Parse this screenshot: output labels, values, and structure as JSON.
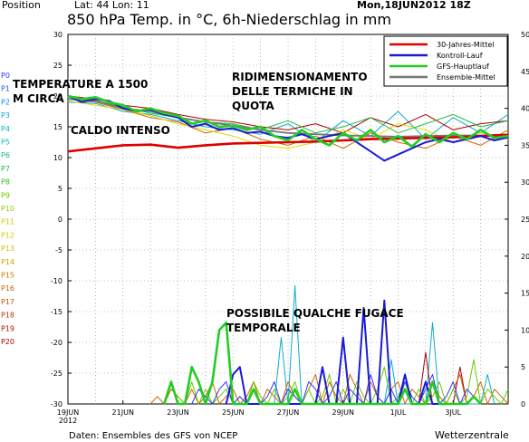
{
  "header": {
    "position": "Position",
    "coords": "Lat: 44 Lon: 11",
    "date": "Mon,18JUN2012 18Z",
    "title": "850 hPa Temp. in °C, 6h-Niederschlag in mm"
  },
  "footer": {
    "source": "Daten: Ensembles des GFS von NCEP",
    "brand": "Wetterzentrale"
  },
  "annotations": {
    "a1_line1": "TEMPERATURE A 1500",
    "a1_line2": "M CIRCA",
    "a2_line1": "RIDIMENSIONAMENTO",
    "a2_line2": "DELLE TERMICHE IN",
    "a2_line3": "QUOTA",
    "a3": "CALDO INTENSO",
    "a4_line1": "POSSIBILE QUALCHE FUGACE",
    "a4_line2": "TEMPORALE"
  },
  "legend": {
    "items": [
      {
        "label": "30-Jahres-Mittel",
        "color": "#dd0000"
      },
      {
        "label": "Kontroll-Lauf",
        "color": "#1a1ad8"
      },
      {
        "label": "GFS-Hauptlauf",
        "color": "#22cc22"
      },
      {
        "label": "Ensemble-Mittel",
        "color": "#777777"
      }
    ]
  },
  "members": [
    "P0",
    "P1",
    "P2",
    "P3",
    "P4",
    "P5",
    "P6",
    "P7",
    "P8",
    "P9",
    "P10",
    "P11",
    "P12",
    "P13",
    "P14",
    "P15",
    "P16",
    "P17",
    "P18",
    "P19",
    "P20"
  ],
  "member_colors": [
    "#3333ff",
    "#2255ee",
    "#1188ee",
    "#1199cc",
    "#11aacc",
    "#11bbbb",
    "#11bb88",
    "#22bb44",
    "#33bb22",
    "#66cc00",
    "#99cc00",
    "#cccc00",
    "#ddcc00",
    "#ddbb00",
    "#dd9900",
    "#cc7700",
    "#cc6600",
    "#bb5500",
    "#bb3300",
    "#aa1100",
    "#aa0000"
  ],
  "chart_data": {
    "type": "line",
    "xlabels": [
      "19JUN",
      "21JUN",
      "23JUN",
      "25JUN",
      "27JUN",
      "29JUN",
      "1JUL",
      "3JUL"
    ],
    "xlabel_year": "2012",
    "x_range_days": [
      0,
      16
    ],
    "y_left": {
      "range": [
        -30,
        30
      ],
      "ticks": [
        30,
        25,
        20,
        15,
        10,
        5,
        0,
        -5,
        -10,
        -15,
        -20,
        -25,
        -30
      ]
    },
    "y_right": {
      "range": [
        0,
        50
      ],
      "ticks": [
        50,
        45,
        40,
        35,
        30,
        25,
        20,
        15,
        10,
        5,
        0
      ]
    },
    "grid": true,
    "legend_position": "top-right",
    "series": [
      {
        "name": "30-Jahres-Mittel",
        "axis": "left",
        "color": "#dd0000",
        "width": 2.6,
        "x": [
          0,
          1,
          2,
          3,
          4,
          5,
          6,
          7,
          8,
          9,
          10,
          11,
          12,
          13,
          14,
          15,
          16
        ],
        "y": [
          11,
          11.5,
          12,
          12.1,
          11.6,
          12,
          12.3,
          12.4,
          12.5,
          12.6,
          12.8,
          13,
          13.1,
          13.2,
          13.3,
          13.5,
          13.7
        ]
      },
      {
        "name": "Kontroll-Lauf",
        "axis": "left",
        "color": "#1a1ad8",
        "width": 2,
        "x": [
          0,
          0.5,
          1,
          1.5,
          2,
          2.5,
          3,
          3.5,
          4,
          4.5,
          5,
          5.5,
          6,
          6.5,
          7,
          7.5,
          8,
          8.5,
          9,
          9.5,
          10,
          10.5,
          11,
          11.5,
          12,
          12.5,
          13,
          13.5,
          14,
          14.5,
          15,
          15.5,
          16
        ],
        "y": [
          20,
          19,
          19.5,
          19.2,
          18,
          17.5,
          17.8,
          17,
          16.5,
          15,
          15.5,
          14.5,
          14.8,
          14,
          14.2,
          13.5,
          13.2,
          13.8,
          13,
          13.5,
          14,
          12.5,
          11,
          9.5,
          10.5,
          11.5,
          12.5,
          13,
          12.5,
          13,
          13.5,
          12.8,
          13.3
        ]
      },
      {
        "name": "GFS-Hauptlauf",
        "axis": "left",
        "color": "#22cc22",
        "width": 2.6,
        "x": [
          0,
          0.5,
          1,
          1.5,
          2,
          2.5,
          3,
          3.5,
          4,
          4.5,
          5,
          5.5,
          6,
          6.5,
          7,
          7.5,
          8,
          8.5,
          9,
          9.5,
          10,
          10.5,
          11,
          11.5,
          12,
          12.5,
          13,
          13.5,
          14,
          14.5,
          15,
          15.5,
          16
        ],
        "y": [
          20,
          19.5,
          19.8,
          19,
          18.5,
          17.5,
          18,
          17.2,
          16.8,
          15.5,
          16,
          15,
          15.2,
          14.5,
          15,
          13.5,
          12.8,
          14.5,
          13,
          12,
          14,
          12.8,
          14.5,
          12.5,
          13.5,
          11.8,
          13.8,
          12.5,
          14,
          13,
          14.5,
          13.2,
          13.5
        ]
      },
      {
        "name": "Ensemble-Mittel",
        "axis": "left",
        "color": "#777777",
        "width": 1.8,
        "x": [
          0,
          1,
          2,
          3,
          4,
          5,
          6,
          7,
          8,
          9,
          10,
          11,
          12,
          13,
          14,
          15,
          16
        ],
        "y": [
          19.5,
          19.2,
          18,
          17.5,
          16.5,
          15.8,
          15.2,
          14.5,
          14,
          13.8,
          13.6,
          13.5,
          13.4,
          13.5,
          13.6,
          13.6,
          13.7
        ]
      },
      {
        "name": "Kontroll-Lauf",
        "axis": "right",
        "color": "#1a1ad8",
        "width": 2,
        "x": [
          5.75,
          6,
          6.25,
          6.5,
          9,
          9.25,
          9.5,
          9.75,
          10,
          10.25,
          10.5,
          10.75,
          11,
          11.25,
          11.5,
          11.75,
          12,
          12.25,
          12.5,
          12.75,
          13,
          13.25,
          13.5
        ],
        "y": [
          0,
          4,
          5,
          0,
          0,
          5,
          0,
          0,
          9,
          0,
          0,
          13,
          0,
          0,
          14,
          0,
          0,
          4,
          0,
          0,
          3,
          0,
          0
        ]
      },
      {
        "name": "GFS-Hauptlauf",
        "axis": "right",
        "color": "#22cc22",
        "width": 2.6,
        "x": [
          3.5,
          3.75,
          4,
          4.25,
          4.5,
          4.75,
          5,
          5.25,
          5.5,
          5.75,
          6,
          6.25,
          6.5,
          6.75,
          7,
          7.25,
          7.5,
          8,
          8.25,
          8.5,
          8.75,
          9,
          12,
          12.25,
          12.5,
          13,
          13.25,
          13.5,
          14.5,
          14.75,
          15
        ],
        "y": [
          0,
          3,
          0,
          0,
          5,
          3,
          0,
          3,
          10,
          11,
          0,
          0,
          0,
          2,
          0,
          0,
          0,
          0,
          2,
          0,
          0,
          0,
          0,
          2,
          0,
          0,
          3,
          0,
          0,
          1,
          0
        ]
      },
      {
        "name": "member-1",
        "axis": "left",
        "color": "#11aacc",
        "width": 1,
        "x": [
          0,
          1,
          2,
          3,
          4,
          5,
          6,
          7,
          8,
          9,
          10,
          11,
          12,
          13,
          14,
          15,
          16
        ],
        "y": [
          19,
          18.8,
          17.5,
          17,
          16,
          15,
          14.5,
          13.8,
          15.5,
          12.5,
          16,
          13.5,
          17.5,
          13,
          16.5,
          14,
          17
        ]
      },
      {
        "name": "member-2",
        "axis": "left",
        "color": "#cc6600",
        "width": 1,
        "x": [
          0,
          1,
          2,
          3,
          4,
          5,
          6,
          7,
          8,
          9,
          10,
          11,
          12,
          13,
          14,
          15,
          16
        ],
        "y": [
          19.5,
          19,
          17.8,
          16.5,
          15.8,
          14,
          14.8,
          13,
          12,
          13.5,
          11.5,
          14,
          12.5,
          11.5,
          13.5,
          12,
          14.5
        ]
      },
      {
        "name": "member-3",
        "axis": "left",
        "color": "#aa0000",
        "width": 1,
        "x": [
          0,
          1,
          2,
          3,
          4,
          5,
          6,
          7,
          8,
          9,
          10,
          11,
          12,
          13,
          14,
          15,
          16
        ],
        "y": [
          20,
          19.5,
          18.5,
          18,
          17,
          16.2,
          15.8,
          15,
          14.5,
          15.5,
          14,
          16.5,
          15,
          17,
          14.5,
          15.5,
          16
        ]
      },
      {
        "name": "member-4",
        "axis": "left",
        "color": "#dddd00",
        "width": 1,
        "x": [
          0,
          1,
          2,
          3,
          4,
          5,
          6,
          7,
          8,
          9,
          10,
          11,
          12,
          13,
          14,
          15,
          16
        ],
        "y": [
          19.2,
          18.5,
          17.8,
          16.8,
          15.5,
          14.5,
          13.5,
          12,
          11.5,
          12.5,
          14.5,
          13,
          15.5,
          14.5,
          12.5,
          14,
          13
        ]
      },
      {
        "name": "member-5",
        "axis": "left",
        "color": "#22bb44",
        "width": 1,
        "x": [
          0,
          1,
          2,
          3,
          4,
          5,
          6,
          7,
          8,
          9,
          10,
          11,
          12,
          13,
          14,
          15,
          16
        ],
        "y": [
          19.8,
          19.3,
          18.2,
          17.2,
          16.5,
          15.8,
          15.5,
          14.5,
          16,
          14,
          15,
          16.5,
          14,
          15.5,
          17,
          15,
          16
        ]
      },
      {
        "name": "member-6",
        "axis": "right",
        "color": "#11aacc",
        "width": 1,
        "x": [
          7.5,
          7.75,
          8,
          8.25,
          8.5,
          11.5,
          11.75,
          12,
          12.25,
          12.5,
          13,
          13.25,
          13.5,
          15,
          15.25,
          15.5
        ],
        "y": [
          0,
          9,
          0,
          0,
          0,
          0,
          6,
          0,
          0,
          0,
          0,
          11,
          0,
          0,
          4,
          0
        ]
      },
      {
        "name": "member-7",
        "axis": "right",
        "color": "#11aacc",
        "width": 1,
        "x": [
          8,
          8.25,
          8.5,
          8.75,
          9
        ],
        "y": [
          0,
          16,
          0,
          0,
          0
        ]
      },
      {
        "name": "member-8",
        "axis": "right",
        "color": "#aa0000",
        "width": 1,
        "x": [
          12.75,
          13,
          13.25,
          13.5,
          14,
          14.25,
          14.5
        ],
        "y": [
          0,
          7,
          0,
          0,
          0,
          5,
          0
        ]
      },
      {
        "name": "member-9",
        "axis": "right",
        "color": "#cc6600",
        "width": 1,
        "x": [
          3,
          3.25,
          3.5,
          3.75,
          4,
          4.25,
          4.5,
          4.75,
          5,
          5.25,
          5.5,
          5.75,
          6,
          6.25,
          6.5,
          6.75,
          7,
          7.25,
          7.5,
          7.75,
          8,
          8.25,
          8.5,
          8.75,
          9,
          9.25,
          9.5,
          9.75,
          10,
          10.25,
          10.5,
          10.75,
          11,
          11.25,
          11.5,
          11.75,
          12,
          12.25,
          12.5,
          12.75,
          13,
          13.25,
          13.5,
          13.75,
          14,
          14.25,
          14.5,
          14.75,
          15,
          15.25,
          15.5,
          15.75,
          16
        ],
        "y": [
          0,
          1,
          0,
          2,
          1,
          0,
          2,
          0,
          1,
          3,
          0,
          1,
          2,
          0,
          1,
          3,
          0,
          2,
          1,
          0,
          3,
          1,
          0,
          2,
          4,
          0,
          3,
          1,
          0,
          4,
          2,
          0,
          3,
          1,
          0,
          2,
          3,
          0,
          2,
          1,
          0,
          3,
          1,
          0,
          2,
          4,
          0,
          1,
          3,
          0,
          2,
          1,
          0
        ]
      },
      {
        "name": "member-10",
        "axis": "right",
        "color": "#66cc00",
        "width": 1,
        "x": [
          4,
          4.25,
          4.5,
          4.75,
          5,
          5.25,
          5.5,
          5.75,
          6,
          6.25,
          6.5,
          6.75,
          7,
          7.25,
          7.5,
          7.75,
          8,
          8.25,
          8.5,
          8.75,
          9,
          9.25,
          9.5,
          9.75,
          10,
          10.25,
          10.5,
          10.75,
          11,
          11.25,
          11.5,
          11.75,
          12,
          12.25,
          12.5,
          12.75,
          13,
          13.25,
          13.5,
          13.75,
          14,
          14.25,
          14.5,
          14.75,
          15,
          15.25,
          15.5,
          15.75,
          16
        ],
        "y": [
          1,
          0,
          3,
          0,
          2,
          0,
          1,
          2,
          0,
          1,
          0,
          3,
          1,
          0,
          2,
          0,
          1,
          3,
          0,
          2,
          0,
          1,
          4,
          0,
          2,
          0,
          3,
          1,
          0,
          2,
          5,
          0,
          1,
          3,
          0,
          2,
          0,
          1,
          3,
          0,
          2,
          0,
          1,
          6,
          0,
          2,
          1,
          0,
          2
        ]
      },
      {
        "name": "member-11",
        "axis": "right",
        "color": "#3333ff",
        "width": 1,
        "x": [
          4.5,
          4.75,
          5,
          5.25,
          5.5,
          5.75,
          6,
          6.25,
          6.5,
          6.75,
          7,
          7.25,
          7.5,
          7.75,
          8,
          8.25,
          8.5,
          8.75,
          9,
          9.25,
          9.5,
          9.75,
          10,
          10.25,
          10.5,
          10.75,
          11,
          11.25,
          11.5,
          11.75,
          12,
          12.25,
          12.5,
          12.75,
          13,
          13.25,
          13.5,
          13.75,
          14,
          14.25,
          14.5,
          14.75,
          15
        ],
        "y": [
          0,
          2,
          1,
          0,
          2,
          3,
          0,
          1,
          0,
          2,
          0,
          1,
          3,
          0,
          2,
          1,
          0,
          3,
          2,
          0,
          1,
          3,
          0,
          2,
          1,
          0,
          4,
          1,
          0,
          2,
          0,
          3,
          1,
          0,
          2,
          4,
          0,
          1,
          3,
          0,
          2,
          1,
          0
        ]
      }
    ]
  }
}
